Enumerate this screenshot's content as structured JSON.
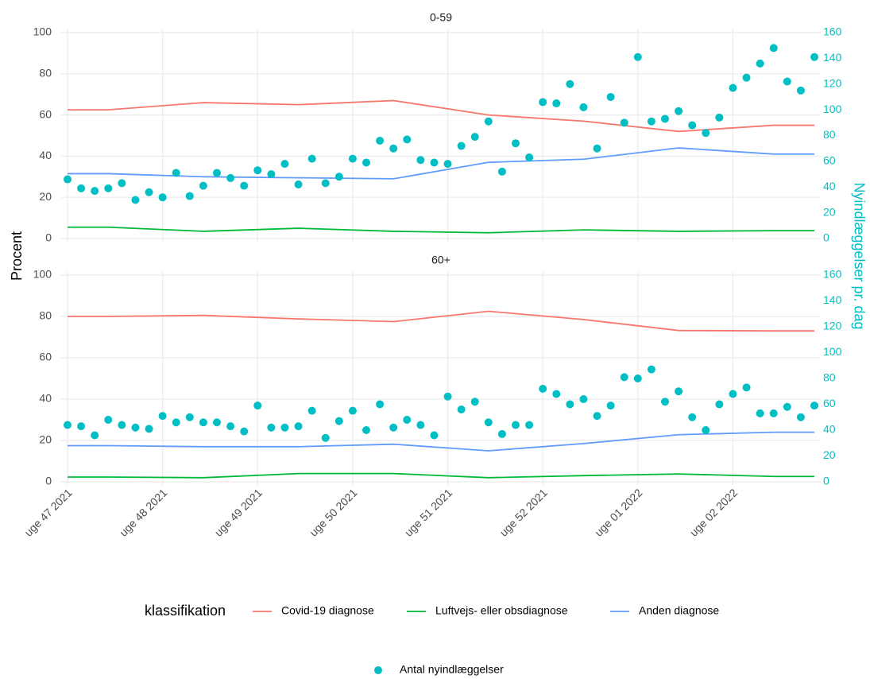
{
  "chart_data": {
    "type": "line",
    "facets": [
      "0-59",
      "60+"
    ],
    "ylabel": "Procent",
    "y2label": "Nyindlæggelser pr. dag",
    "legend_title": "klassifikation",
    "xlim": [
      0,
      55
    ],
    "xticks": [
      {
        "value": 0,
        "label": "uge 47 2021"
      },
      {
        "value": 7,
        "label": "uge 48 2021"
      },
      {
        "value": 14,
        "label": "uge 49 2021"
      },
      {
        "value": 21,
        "label": "uge 50 2021"
      },
      {
        "value": 28,
        "label": "uge 51 2021"
      },
      {
        "value": 35,
        "label": "uge 52 2021"
      },
      {
        "value": 42,
        "label": "uge 01 2022"
      },
      {
        "value": 49,
        "label": "uge 02 2022"
      }
    ],
    "ylim": [
      0,
      100
    ],
    "yticks": [
      0,
      20,
      40,
      60,
      80,
      100
    ],
    "y2lim": [
      0,
      160
    ],
    "y2ticks": [
      0,
      20,
      40,
      60,
      80,
      100,
      120,
      140,
      160
    ],
    "grid": true,
    "x": [
      0,
      3,
      10,
      17,
      24,
      31,
      38,
      45,
      52,
      55
    ],
    "series": [
      {
        "name": "Covid-19 diagnose",
        "color": "#F8766D",
        "values": [
          [
            62.5,
            62.5,
            66,
            65,
            67,
            60,
            57,
            52,
            55,
            55
          ],
          [
            80,
            80,
            80.5,
            78.8,
            77.5,
            82.5,
            78.5,
            73.2,
            73,
            73
          ]
        ]
      },
      {
        "name": "Luftvejs- eller obsdiagnose",
        "color": "#00BA38",
        "values": [
          [
            5.5,
            5.5,
            3.5,
            5,
            3.5,
            2.8,
            4.2,
            3.5,
            3.8,
            3.8
          ],
          [
            2.3,
            2.3,
            2,
            4,
            4,
            2,
            3,
            3.8,
            2.6,
            2.6
          ]
        ]
      },
      {
        "name": "Anden diagnose",
        "color": "#619CFF",
        "values": [
          [
            31.5,
            31.5,
            30,
            29.5,
            29,
            37,
            38.5,
            44,
            41,
            41
          ],
          [
            17.5,
            17.5,
            17,
            17,
            18.2,
            15,
            18.5,
            22.8,
            24,
            24
          ]
        ]
      }
    ],
    "points": {
      "name": "Antal nyindlæggelser",
      "color": "#00BFC4",
      "axis": "y2",
      "x": [
        0,
        1,
        2,
        3,
        4,
        5,
        6,
        7,
        8,
        9,
        10,
        11,
        12,
        13,
        14,
        15,
        16,
        17,
        18,
        19,
        20,
        21,
        22,
        23,
        24,
        25,
        26,
        27,
        28,
        29,
        30,
        31,
        32,
        33,
        34,
        35,
        36,
        37,
        38,
        39,
        40,
        41,
        42,
        43,
        44,
        45,
        46,
        47,
        48,
        49,
        50,
        51,
        52,
        53,
        54,
        55
      ],
      "values": [
        [
          46,
          39,
          37,
          39,
          43,
          30,
          36,
          32,
          51,
          33,
          41,
          51,
          47,
          41,
          53,
          50,
          58,
          42,
          62,
          43,
          48,
          62,
          59,
          76,
          70,
          77,
          61,
          59,
          58,
          72,
          79,
          91,
          52,
          74,
          63,
          106,
          105,
          120,
          102,
          70,
          110,
          90,
          141,
          91,
          93,
          99,
          88,
          82,
          94,
          117,
          125,
          136,
          148,
          122,
          115,
          141
        ],
        [
          44,
          43,
          36,
          48,
          44,
          42,
          41,
          51,
          46,
          50,
          46,
          46,
          43,
          39,
          59,
          42,
          42,
          43,
          55,
          34,
          47,
          55,
          40,
          60,
          42,
          48,
          44,
          36,
          66,
          56,
          62,
          46,
          37,
          44,
          44,
          72,
          68,
          60,
          64,
          51,
          59,
          81,
          80,
          87,
          62,
          70,
          50,
          40,
          60,
          68,
          73,
          53,
          53,
          58,
          50,
          59
        ]
      ]
    }
  }
}
